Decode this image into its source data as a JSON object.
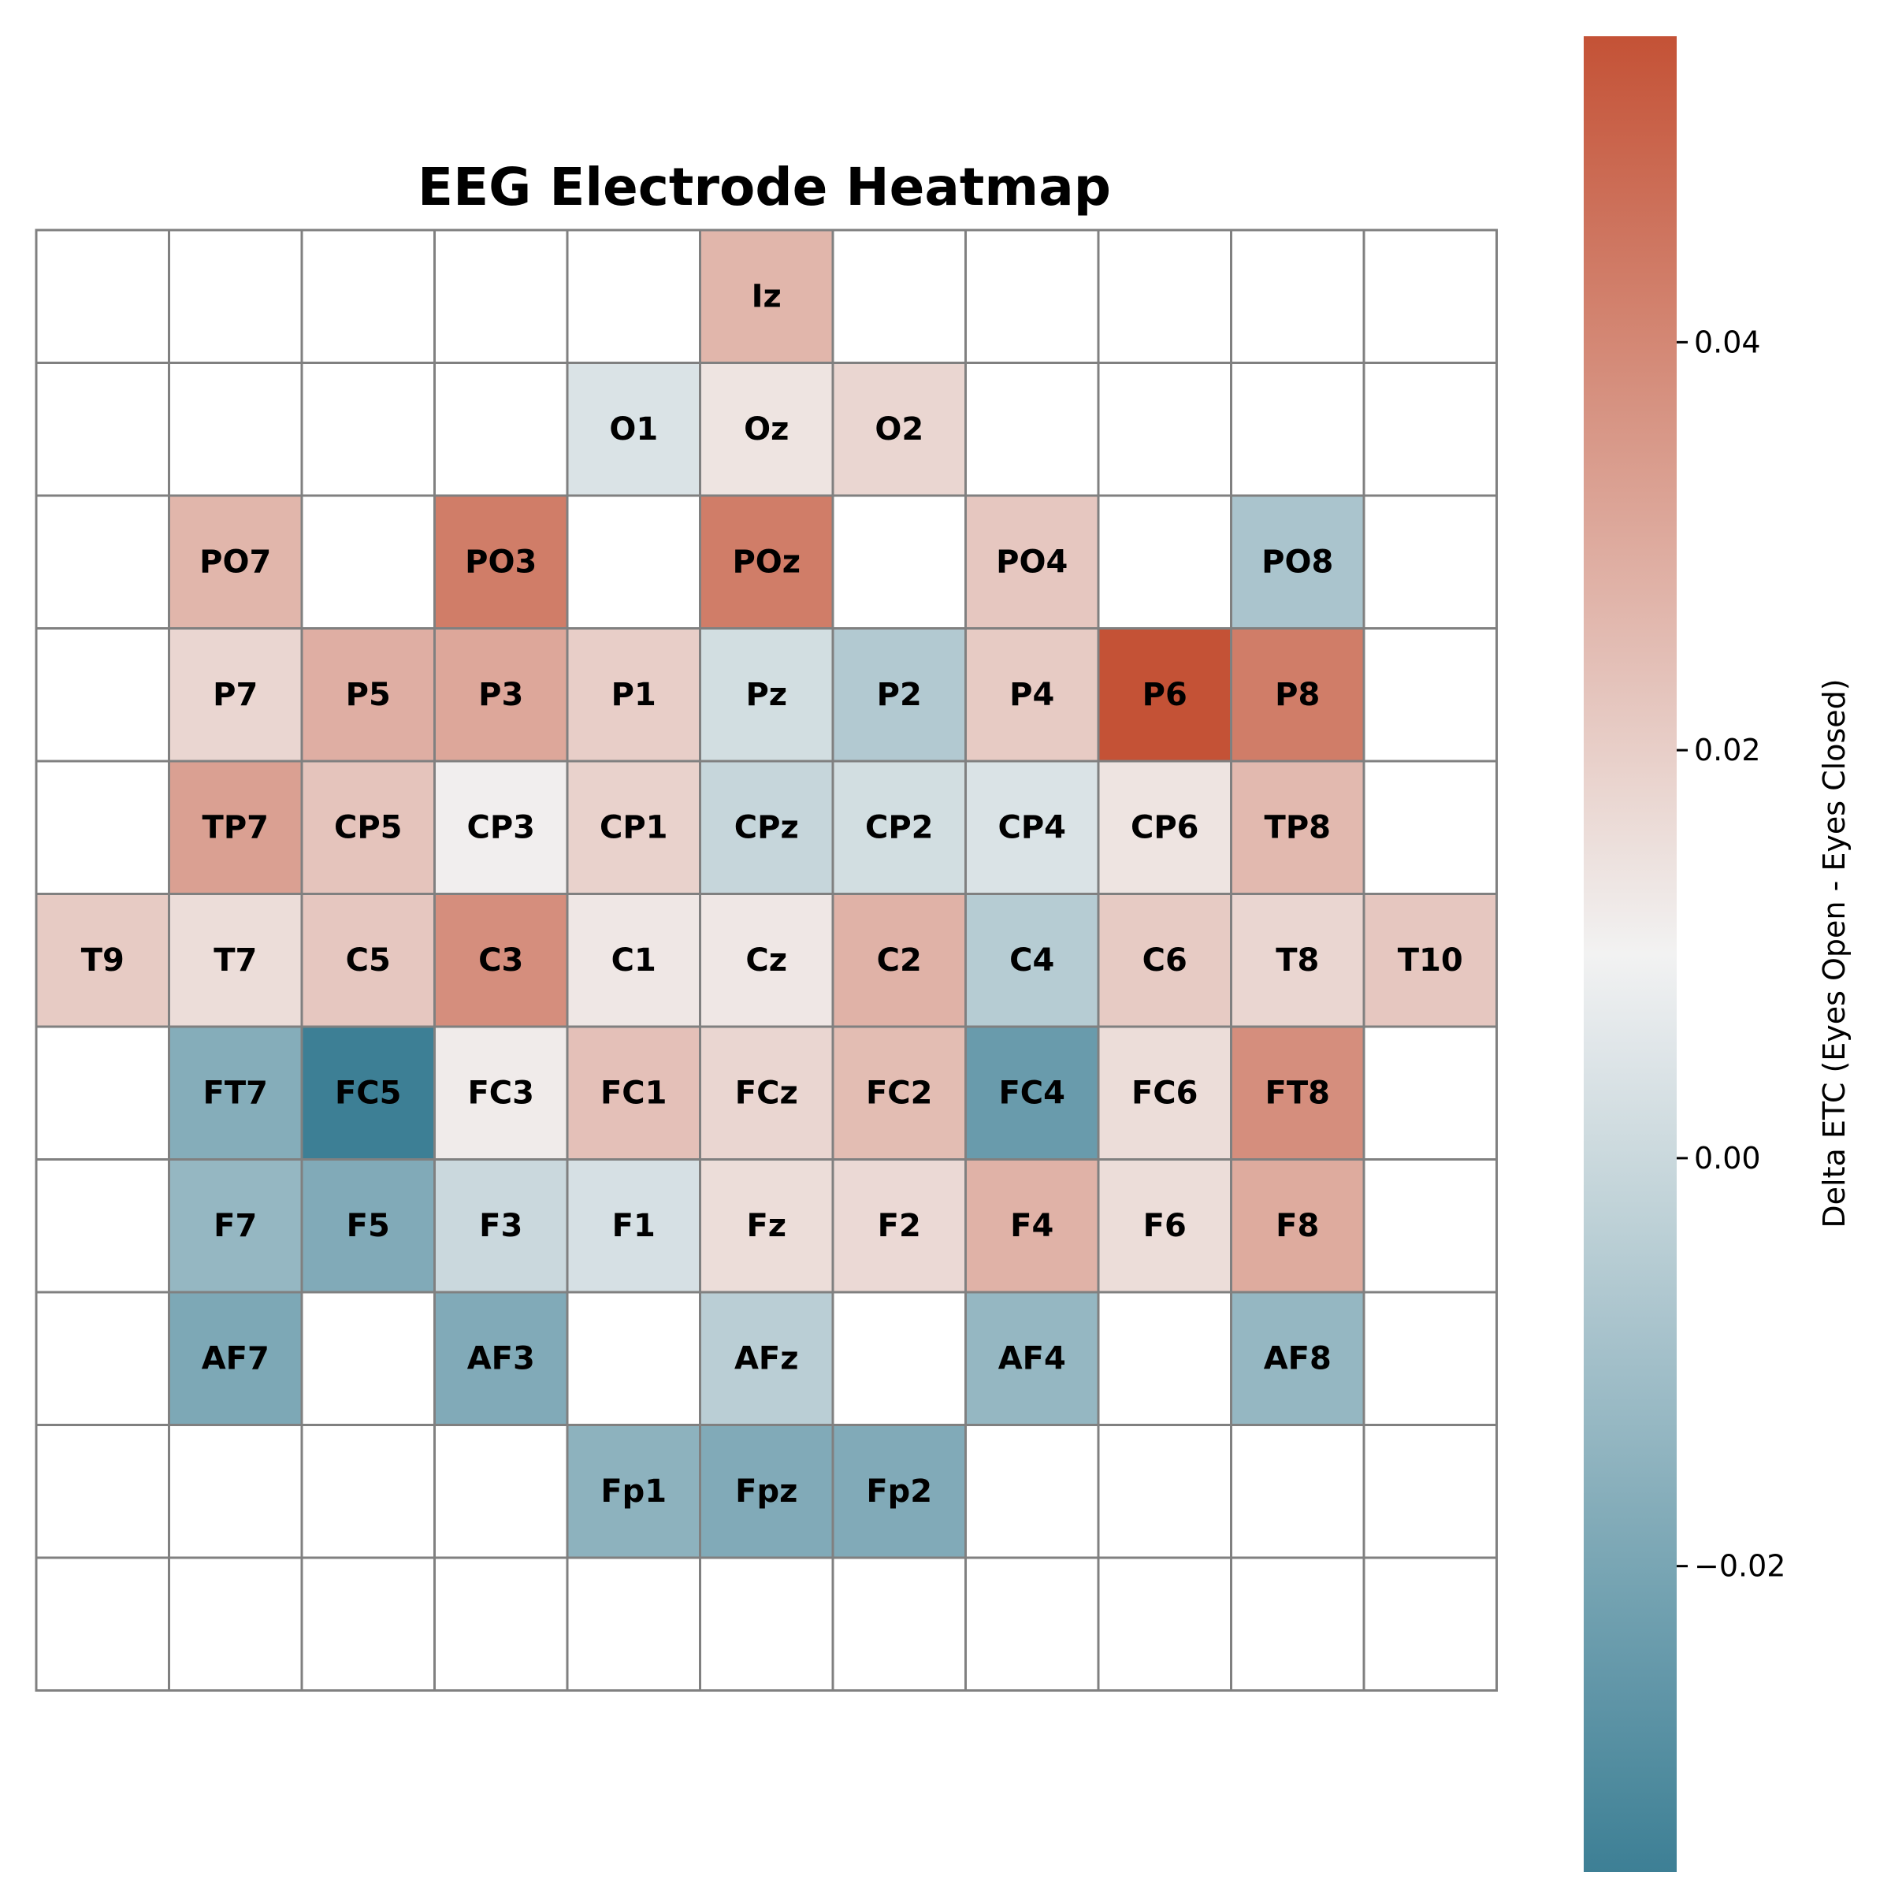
{
  "chart_data": {
    "type": "heatmap",
    "title": "EEG Electrode Heatmap",
    "colorbar_label": "Delta ETC (Eyes Open - Eyes Closed)",
    "colorbar_range": [
      -0.035,
      0.055
    ],
    "colorbar_ticks": [
      {
        "value": 0.04,
        "label": "0.04"
      },
      {
        "value": 0.02,
        "label": "0.02"
      },
      {
        "value": 0.0,
        "label": "0.00"
      },
      {
        "value": -0.02,
        "label": "−0.02"
      }
    ],
    "colormap": {
      "low": "#3d7f95",
      "mid": "#f2f2f2",
      "high": "#c45236"
    },
    "grid_line_color": "#808080",
    "empty_cell_color": "#ffffff",
    "n_rows": 11,
    "n_cols": 11,
    "cells": [
      {
        "label": "Iz",
        "row": 0,
        "col": 5,
        "value": 0.027
      },
      {
        "label": "O1",
        "row": 1,
        "col": 4,
        "value": 0.004
      },
      {
        "label": "Oz",
        "row": 1,
        "col": 5,
        "value": 0.014
      },
      {
        "label": "O2",
        "row": 1,
        "col": 6,
        "value": 0.018
      },
      {
        "label": "PO7",
        "row": 2,
        "col": 1,
        "value": 0.027
      },
      {
        "label": "PO3",
        "row": 2,
        "col": 3,
        "value": 0.043
      },
      {
        "label": "POz",
        "row": 2,
        "col": 5,
        "value": 0.043
      },
      {
        "label": "PO4",
        "row": 2,
        "col": 7,
        "value": 0.022
      },
      {
        "label": "PO8",
        "row": 2,
        "col": 9,
        "value": -0.008
      },
      {
        "label": "P7",
        "row": 3,
        "col": 1,
        "value": 0.018
      },
      {
        "label": "P5",
        "row": 3,
        "col": 2,
        "value": 0.029
      },
      {
        "label": "P3",
        "row": 3,
        "col": 3,
        "value": 0.031
      },
      {
        "label": "P1",
        "row": 3,
        "col": 4,
        "value": 0.02
      },
      {
        "label": "Pz",
        "row": 3,
        "col": 5,
        "value": 0.002
      },
      {
        "label": "P2",
        "row": 3,
        "col": 6,
        "value": -0.006
      },
      {
        "label": "P4",
        "row": 3,
        "col": 7,
        "value": 0.021
      },
      {
        "label": "P6",
        "row": 3,
        "col": 8,
        "value": 0.055
      },
      {
        "label": "P8",
        "row": 3,
        "col": 9,
        "value": 0.043
      },
      {
        "label": "TP7",
        "row": 4,
        "col": 1,
        "value": 0.033
      },
      {
        "label": "CP5",
        "row": 4,
        "col": 2,
        "value": 0.023
      },
      {
        "label": "CP3",
        "row": 4,
        "col": 3,
        "value": 0.011
      },
      {
        "label": "CP1",
        "row": 4,
        "col": 4,
        "value": 0.019
      },
      {
        "label": "CPz",
        "row": 4,
        "col": 5,
        "value": -0.001
      },
      {
        "label": "CP2",
        "row": 4,
        "col": 6,
        "value": 0.002
      },
      {
        "label": "CP4",
        "row": 4,
        "col": 7,
        "value": 0.004
      },
      {
        "label": "CP6",
        "row": 4,
        "col": 8,
        "value": 0.014
      },
      {
        "label": "TP8",
        "row": 4,
        "col": 9,
        "value": 0.026
      },
      {
        "label": "T9",
        "row": 5,
        "col": 0,
        "value": 0.021
      },
      {
        "label": "T7",
        "row": 5,
        "col": 1,
        "value": 0.016
      },
      {
        "label": "C5",
        "row": 5,
        "col": 2,
        "value": 0.022
      },
      {
        "label": "C3",
        "row": 5,
        "col": 3,
        "value": 0.038
      },
      {
        "label": "C1",
        "row": 5,
        "col": 4,
        "value": 0.013
      },
      {
        "label": "Cz",
        "row": 5,
        "col": 5,
        "value": 0.013
      },
      {
        "label": "C2",
        "row": 5,
        "col": 6,
        "value": 0.028
      },
      {
        "label": "C4",
        "row": 5,
        "col": 7,
        "value": -0.005
      },
      {
        "label": "C6",
        "row": 5,
        "col": 8,
        "value": 0.021
      },
      {
        "label": "T8",
        "row": 5,
        "col": 9,
        "value": 0.018
      },
      {
        "label": "T10",
        "row": 5,
        "col": 10,
        "value": 0.022
      },
      {
        "label": "FT7",
        "row": 6,
        "col": 1,
        "value": -0.017
      },
      {
        "label": "FC5",
        "row": 6,
        "col": 2,
        "value": -0.035
      },
      {
        "label": "FC3",
        "row": 6,
        "col": 3,
        "value": 0.012
      },
      {
        "label": "FC1",
        "row": 6,
        "col": 4,
        "value": 0.024
      },
      {
        "label": "FCz",
        "row": 6,
        "col": 5,
        "value": 0.018
      },
      {
        "label": "FC2",
        "row": 6,
        "col": 6,
        "value": 0.025
      },
      {
        "label": "FC4",
        "row": 6,
        "col": 7,
        "value": -0.024
      },
      {
        "label": "FC6",
        "row": 6,
        "col": 8,
        "value": 0.016
      },
      {
        "label": "FT8",
        "row": 6,
        "col": 9,
        "value": 0.038
      },
      {
        "label": "F7",
        "row": 7,
        "col": 1,
        "value": -0.013
      },
      {
        "label": "F5",
        "row": 7,
        "col": 2,
        "value": -0.018
      },
      {
        "label": "F3",
        "row": 7,
        "col": 3,
        "value": 0.0
      },
      {
        "label": "F1",
        "row": 7,
        "col": 4,
        "value": 0.003
      },
      {
        "label": "Fz",
        "row": 7,
        "col": 5,
        "value": 0.016
      },
      {
        "label": "F2",
        "row": 7,
        "col": 6,
        "value": 0.017
      },
      {
        "label": "F4",
        "row": 7,
        "col": 7,
        "value": 0.028
      },
      {
        "label": "F6",
        "row": 7,
        "col": 8,
        "value": 0.016
      },
      {
        "label": "F8",
        "row": 7,
        "col": 9,
        "value": 0.03
      },
      {
        "label": "AF7",
        "row": 8,
        "col": 1,
        "value": -0.019
      },
      {
        "label": "AF3",
        "row": 8,
        "col": 3,
        "value": -0.018
      },
      {
        "label": "AFz",
        "row": 8,
        "col": 5,
        "value": -0.004
      },
      {
        "label": "AF4",
        "row": 8,
        "col": 7,
        "value": -0.013
      },
      {
        "label": "AF8",
        "row": 8,
        "col": 9,
        "value": -0.013
      },
      {
        "label": "Fp1",
        "row": 9,
        "col": 4,
        "value": -0.015
      },
      {
        "label": "Fpz",
        "row": 9,
        "col": 5,
        "value": -0.018
      },
      {
        "label": "Fp2",
        "row": 9,
        "col": 6,
        "value": -0.018
      }
    ]
  }
}
